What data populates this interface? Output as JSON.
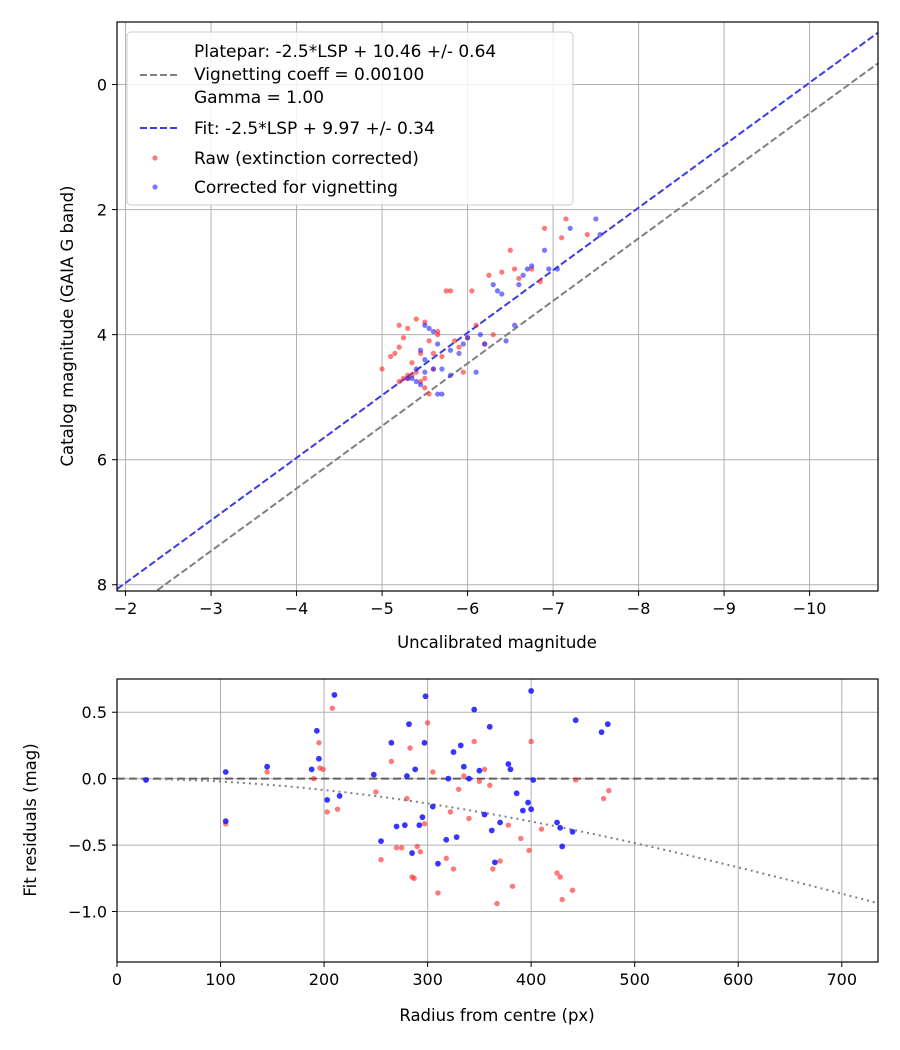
{
  "chart_data": [
    {
      "type": "scatter",
      "xlabel": "Uncalibrated magnitude",
      "ylabel": "Catalog magnitude (GAIA G band)",
      "xlim": [
        -1.9,
        -10.8
      ],
      "ylim": [
        8.1,
        -1.0
      ],
      "x_inverted": true,
      "y_inverted": true,
      "grid": true,
      "legend_position": "upper-left",
      "xticks": [
        -2,
        -3,
        -4,
        -5,
        -6,
        -7,
        -8,
        -9,
        -10
      ],
      "xtick_labels": [
        "−2",
        "−3",
        "−4",
        "−5",
        "−6",
        "−7",
        "−8",
        "−9",
        "−10"
      ],
      "yticks": [
        0,
        2,
        4,
        6,
        8
      ],
      "ytick_labels": [
        "0",
        "2",
        "4",
        "6",
        "8"
      ],
      "legend": {
        "platepar_line1": "Platepar: -2.5*LSP + 10.46 +/- 0.64",
        "platepar_line2": "Vignetting coeff = 0.00100",
        "platepar_line3": "Gamma = 1.00",
        "fit": "Fit: -2.5*LSP + 9.97 +/- 0.34",
        "raw": "Raw (extinction corrected)",
        "corrected": "Corrected for vignetting"
      },
      "lines": [
        {
          "id": "platepar",
          "slope": 1.0,
          "intercept": 10.46,
          "color": "#808080",
          "style": "dashed"
        },
        {
          "id": "fit",
          "slope": 1.0,
          "intercept": 9.97,
          "color": "#3b3be8",
          "style": "dashed"
        }
      ],
      "series": [
        {
          "name": "Raw (extinction corrected)",
          "color": "#ff2020",
          "points": [
            [
              -5.0,
              4.55
            ],
            [
              -5.1,
              4.35
            ],
            [
              -5.15,
              4.3
            ],
            [
              -5.2,
              4.2
            ],
            [
              -5.25,
              4.05
            ],
            [
              -5.2,
              3.85
            ],
            [
              -5.3,
              3.9
            ],
            [
              -5.3,
              4.7
            ],
            [
              -5.35,
              4.65
            ],
            [
              -5.2,
              4.75
            ],
            [
              -5.25,
              4.7
            ],
            [
              -5.4,
              4.6
            ],
            [
              -5.45,
              4.75
            ],
            [
              -5.5,
              4.7
            ],
            [
              -5.4,
              3.75
            ],
            [
              -5.5,
              3.8
            ],
            [
              -5.55,
              4.1
            ],
            [
              -5.6,
              4.3
            ],
            [
              -5.65,
              4.0
            ],
            [
              -5.7,
              4.35
            ],
            [
              -5.75,
              3.3
            ],
            [
              -5.8,
              3.3
            ],
            [
              -5.85,
              4.1
            ],
            [
              -5.9,
              4.2
            ],
            [
              -5.95,
              4.6
            ],
            [
              -6.0,
              4.05
            ],
            [
              -6.1,
              3.85
            ],
            [
              -6.05,
              3.3
            ],
            [
              -5.55,
              4.95
            ],
            [
              -5.5,
              4.85
            ],
            [
              -5.3,
              4.65
            ],
            [
              -5.6,
              4.55
            ],
            [
              -5.35,
              4.45
            ],
            [
              -5.65,
              3.95
            ],
            [
              -6.25,
              3.05
            ],
            [
              -6.4,
              3.0
            ],
            [
              -6.5,
              2.65
            ],
            [
              -6.55,
              2.95
            ],
            [
              -6.6,
              3.1
            ],
            [
              -6.75,
              2.95
            ],
            [
              -6.85,
              3.15
            ],
            [
              -6.9,
              2.3
            ],
            [
              -7.1,
              2.45
            ],
            [
              -7.15,
              2.15
            ],
            [
              -7.4,
              2.4
            ],
            [
              -6.3,
              4.0
            ],
            [
              -5.45,
              4.3
            ],
            [
              -6.2,
              4.15
            ]
          ]
        },
        {
          "name": "Corrected for vignetting",
          "color": "#2020ff",
          "points": [
            [
              -5.35,
              4.7
            ],
            [
              -5.4,
              4.75
            ],
            [
              -5.45,
              4.8
            ],
            [
              -5.5,
              4.6
            ],
            [
              -5.6,
              4.55
            ],
            [
              -5.45,
              4.25
            ],
            [
              -5.5,
              3.85
            ],
            [
              -5.55,
              3.9
            ],
            [
              -5.6,
              3.95
            ],
            [
              -5.65,
              4.15
            ],
            [
              -5.7,
              4.55
            ],
            [
              -5.7,
              4.95
            ],
            [
              -5.65,
              4.95
            ],
            [
              -5.8,
              4.65
            ],
            [
              -5.9,
              4.3
            ],
            [
              -5.95,
              4.15
            ],
            [
              -6.0,
              4.05
            ],
            [
              -6.15,
              4.0
            ],
            [
              -6.1,
              4.6
            ],
            [
              -6.3,
              3.2
            ],
            [
              -6.35,
              3.3
            ],
            [
              -6.4,
              3.35
            ],
            [
              -6.45,
              4.1
            ],
            [
              -6.55,
              3.85
            ],
            [
              -6.6,
              3.2
            ],
            [
              -6.65,
              3.05
            ],
            [
              -6.7,
              2.95
            ],
            [
              -6.75,
              2.9
            ],
            [
              -6.9,
              2.65
            ],
            [
              -6.95,
              2.95
            ],
            [
              -7.05,
              2.95
            ],
            [
              -7.2,
              2.3
            ],
            [
              -7.5,
              2.15
            ],
            [
              -7.55,
              2.4
            ],
            [
              -5.5,
              4.4
            ],
            [
              -5.8,
              4.25
            ],
            [
              -6.2,
              4.15
            ],
            [
              -5.4,
              4.55
            ],
            [
              -5.3,
              4.7
            ]
          ]
        }
      ]
    },
    {
      "type": "scatter",
      "xlabel": "Radius from centre (px)",
      "ylabel": "Fit residuals (mag)",
      "xlim": [
        0,
        735
      ],
      "ylim": [
        -1.38,
        0.75
      ],
      "grid": true,
      "xticks": [
        0,
        100,
        200,
        300,
        400,
        500,
        600,
        700
      ],
      "xtick_labels": [
        "0",
        "100",
        "200",
        "300",
        "400",
        "500",
        "600",
        "700"
      ],
      "yticks": [
        0.5,
        0.0,
        -0.5,
        -1.0
      ],
      "ytick_labels": [
        "0.5",
        "0.0",
        "−0.5",
        "−1.0"
      ],
      "reference_lines": [
        {
          "id": "zero",
          "y": 0.0,
          "color": "#606060",
          "style": "dashed"
        },
        {
          "id": "vignetting-curve",
          "coeff": 0.001,
          "color": "#808080",
          "style": "dotted"
        }
      ],
      "series": [
        {
          "name": "Raw (extinction corrected)",
          "color": "#ff2020",
          "points": [
            [
              28,
              -0.01
            ],
            [
              105,
              -0.34
            ],
            [
              145,
              0.05
            ],
            [
              190,
              0.0
            ],
            [
              195,
              0.27
            ],
            [
              196,
              0.08
            ],
            [
              199,
              0.07
            ],
            [
              203,
              -0.25
            ],
            [
              208,
              0.53
            ],
            [
              213,
              -0.23
            ],
            [
              250,
              -0.1
            ],
            [
              255,
              -0.61
            ],
            [
              265,
              0.13
            ],
            [
              270,
              -0.52
            ],
            [
              275,
              -0.52
            ],
            [
              280,
              -0.15
            ],
            [
              283,
              0.23
            ],
            [
              285,
              -0.74
            ],
            [
              287,
              -0.75
            ],
            [
              290,
              -0.51
            ],
            [
              293,
              -0.55
            ],
            [
              297,
              -0.34
            ],
            [
              300,
              0.42
            ],
            [
              305,
              0.05
            ],
            [
              310,
              -0.86
            ],
            [
              318,
              -0.6
            ],
            [
              322,
              -0.25
            ],
            [
              325,
              -0.68
            ],
            [
              330,
              -0.08
            ],
            [
              335,
              0.02
            ],
            [
              340,
              -0.3
            ],
            [
              345,
              0.28
            ],
            [
              350,
              -0.02
            ],
            [
              355,
              0.07
            ],
            [
              360,
              -0.05
            ],
            [
              363,
              -0.68
            ],
            [
              367,
              -0.94
            ],
            [
              370,
              -0.62
            ],
            [
              378,
              -0.35
            ],
            [
              382,
              -0.81
            ],
            [
              390,
              -0.45
            ],
            [
              398,
              -0.54
            ],
            [
              400,
              0.28
            ],
            [
              410,
              -0.38
            ],
            [
              425,
              -0.71
            ],
            [
              428,
              -0.74
            ],
            [
              430,
              -0.91
            ],
            [
              440,
              -0.84
            ],
            [
              443,
              -0.01
            ],
            [
              470,
              -0.15
            ],
            [
              475,
              -0.09
            ]
          ]
        },
        {
          "name": "Corrected for vignetting",
          "color": "#2020ff",
          "points": [
            [
              28,
              -0.01
            ],
            [
              105,
              0.05
            ],
            [
              105,
              -0.32
            ],
            [
              145,
              0.09
            ],
            [
              188,
              0.07
            ],
            [
              193,
              0.36
            ],
            [
              195,
              0.15
            ],
            [
              203,
              -0.16
            ],
            [
              210,
              0.63
            ],
            [
              215,
              -0.13
            ],
            [
              248,
              0.03
            ],
            [
              255,
              -0.47
            ],
            [
              265,
              0.27
            ],
            [
              270,
              -0.36
            ],
            [
              278,
              -0.35
            ],
            [
              280,
              0.02
            ],
            [
              282,
              0.41
            ],
            [
              285,
              -0.56
            ],
            [
              288,
              0.07
            ],
            [
              292,
              -0.35
            ],
            [
              295,
              -0.29
            ],
            [
              297,
              0.27
            ],
            [
              298,
              0.62
            ],
            [
              305,
              -0.21
            ],
            [
              310,
              -0.64
            ],
            [
              318,
              -0.46
            ],
            [
              320,
              0.0
            ],
            [
              325,
              0.2
            ],
            [
              328,
              -0.44
            ],
            [
              332,
              0.25
            ],
            [
              335,
              0.09
            ],
            [
              340,
              0.0
            ],
            [
              345,
              0.52
            ],
            [
              350,
              0.06
            ],
            [
              355,
              -0.27
            ],
            [
              360,
              0.39
            ],
            [
              362,
              -0.39
            ],
            [
              365,
              -0.63
            ],
            [
              370,
              -0.33
            ],
            [
              378,
              0.11
            ],
            [
              380,
              0.07
            ],
            [
              386,
              -0.11
            ],
            [
              392,
              -0.24
            ],
            [
              397,
              -0.18
            ],
            [
              400,
              0.66
            ],
            [
              402,
              -0.01
            ],
            [
              425,
              -0.33
            ],
            [
              428,
              -0.37
            ],
            [
              430,
              -0.51
            ],
            [
              440,
              -0.4
            ],
            [
              443,
              0.44
            ],
            [
              468,
              0.35
            ],
            [
              474,
              0.41
            ],
            [
              400,
              -0.23
            ]
          ]
        }
      ]
    }
  ]
}
